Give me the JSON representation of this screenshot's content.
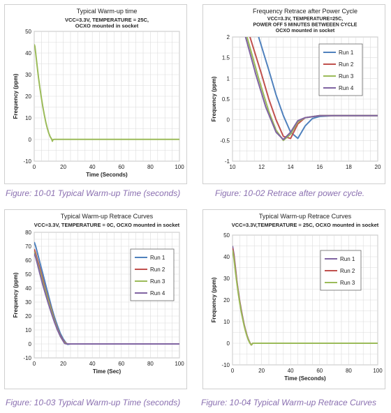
{
  "charts": [
    {
      "panel": "warmup-01",
      "caption": "Figure: 10-01 Typical Warm-up Time (seconds)",
      "chart_data": {
        "type": "line",
        "title": "Typical Warm-up time",
        "subtitle_lines": [
          "VCC=3.3V, TEMPERATURE = 25C,",
          "OCXO mounted in socket"
        ],
        "xlabel": "Time (Seconds)",
        "ylabel": "Frequency (ppm)",
        "xlim": [
          0,
          100
        ],
        "ylim": [
          -10,
          50
        ],
        "xticks": [
          0,
          20,
          40,
          60,
          80,
          100
        ],
        "yticks": [
          -10,
          0,
          10,
          20,
          30,
          40,
          50
        ],
        "grid": true,
        "legend": "none",
        "series": [
          {
            "name": "",
            "color": "#9bbb59",
            "x": [
              0,
              0.5,
              1,
              2,
              3,
              4,
              5,
              6,
              7,
              8,
              9,
              10,
              11,
              12,
              12.5,
              13,
              14,
              15,
              20,
              40,
              60,
              80,
              100
            ],
            "y": [
              44,
              43,
              40,
              34,
              28.5,
              23.5,
              19,
              14.8,
              11.2,
              8,
              5.3,
              3,
              1.3,
              0.2,
              -0.8,
              0,
              0.1,
              0.1,
              0.1,
              0.1,
              0.1,
              0.1,
              0.1
            ]
          }
        ]
      }
    },
    {
      "panel": "retrace-02",
      "caption": "Figure: 10-02 Retrace after power cycle.",
      "chart_data": {
        "type": "line",
        "title": "Frequency Retrace after Power Cycle",
        "subtitle_lines": [
          "VCC=3.3V, TEMPERATURE=25C,",
          "POWER OFF 5 MINUTES BETWEEEN CYCLE",
          "OCXO mounted in socket"
        ],
        "xlabel": "",
        "ylabel": "Frequency (ppm)",
        "xlim": [
          10,
          20
        ],
        "ylim": [
          -1,
          2
        ],
        "xticks": [
          10,
          12,
          14,
          16,
          18,
          20
        ],
        "yticks": [
          -1,
          -0.5,
          0,
          0.5,
          1,
          1.5,
          2
        ],
        "grid": true,
        "legend": "top-right",
        "series": [
          {
            "name": "Run 1",
            "color": "#4f81bd",
            "x": [
              11.8,
              12.5,
              13,
              13.5,
              14,
              14.5,
              15,
              15.5,
              16,
              17,
              20
            ],
            "y": [
              2,
              1.2,
              0.6,
              0.1,
              -0.3,
              -0.45,
              -0.15,
              0.03,
              0.08,
              0.1,
              0.1
            ]
          },
          {
            "name": "Run 2",
            "color": "#c0504d",
            "x": [
              11.2,
              12,
              12.5,
              13,
              13.5,
              14,
              14.5,
              15,
              16,
              20
            ],
            "y": [
              2,
              1.1,
              0.5,
              0,
              -0.4,
              -0.45,
              -0.1,
              0.05,
              0.1,
              0.1
            ]
          },
          {
            "name": "Run 3",
            "color": "#9bbb59",
            "x": [
              11,
              11.8,
              12.5,
              13,
              13.5,
              14,
              14.5,
              15,
              16,
              20
            ],
            "y": [
              2,
              1.0,
              0.2,
              -0.25,
              -0.5,
              -0.35,
              -0.05,
              0.05,
              0.1,
              0.1
            ]
          },
          {
            "name": "Run 4",
            "color": "#8064a2",
            "x": [
              10.9,
              11.6,
              12.3,
              13,
              13.5,
              14,
              14.5,
              15,
              16,
              20
            ],
            "y": [
              2,
              1.1,
              0.3,
              -0.3,
              -0.48,
              -0.3,
              -0.02,
              0.05,
              0.1,
              0.1
            ]
          }
        ]
      }
    },
    {
      "panel": "warmup-03",
      "caption": "Figure: 10-03 Typical Warm-up Time (seconds)",
      "chart_data": {
        "type": "line",
        "title": "Typical Warm-up  Retrace Curves",
        "subtitle_lines": [
          "VCC=3.3V, TEMPERATURE = 0C, OCXO mounted in socket"
        ],
        "xlabel": "Time (Sec)",
        "ylabel": "Frequency (ppm)",
        "xlim": [
          0,
          100
        ],
        "ylim": [
          -10,
          80
        ],
        "xticks": [
          0,
          20,
          40,
          60,
          80,
          100
        ],
        "yticks": [
          -10,
          0,
          10,
          20,
          30,
          40,
          50,
          60,
          70,
          80
        ],
        "grid": true,
        "legend": "right",
        "series": [
          {
            "name": "Run 1",
            "color": "#4f81bd",
            "x": [
              0,
              1,
              2,
              4,
              6,
              8,
              10,
              12,
              14,
              16,
              18,
              20,
              22,
              23,
              25,
              40,
              60,
              80,
              100
            ],
            "y": [
              73,
              70,
              66,
              58,
              50,
              42,
              34,
              26,
              19,
              13,
              7.5,
              3.5,
              0.5,
              -0.3,
              0,
              0,
              0,
              0,
              0
            ]
          },
          {
            "name": "Run 2",
            "color": "#c0504d",
            "x": [
              0,
              1,
              2,
              4,
              6,
              8,
              10,
              12,
              14,
              16,
              18,
              20,
              22,
              24,
              40,
              60,
              80,
              100
            ],
            "y": [
              68,
              65,
              61,
              54,
              46,
              38,
              31,
              24,
              17,
              11,
              6,
              2.5,
              0.2,
              0,
              0,
              0,
              0,
              0
            ]
          },
          {
            "name": "Run 3",
            "color": "#9bbb59",
            "x": [
              0,
              1,
              2,
              4,
              6,
              8,
              10,
              12,
              14,
              16,
              18,
              20,
              22,
              24,
              40,
              60,
              80,
              100
            ],
            "y": [
              66,
              63,
              59,
              52,
              44,
              37,
              30,
              23,
              16.5,
              10.5,
              5.5,
              2,
              0,
              0,
              0,
              0,
              0,
              0
            ]
          },
          {
            "name": "Run 4",
            "color": "#8064a2",
            "x": [
              0,
              1,
              2,
              4,
              6,
              8,
              10,
              12,
              14,
              16,
              18,
              20,
              21,
              23,
              40,
              60,
              80,
              100
            ],
            "y": [
              65,
              62,
              58,
              50,
              42,
              35,
              28,
              21.5,
              15.5,
              10,
              5.5,
              2,
              0.3,
              0,
              0,
              0,
              0,
              0
            ]
          }
        ]
      }
    },
    {
      "panel": "retrace-04",
      "caption": "Figure: 10-04 Typical Warm-up Retrace Curves",
      "chart_data": {
        "type": "line",
        "title": "Typical Warm-up  Retrace Curves",
        "subtitle_lines": [
          "VCC=3.3V,TEMPERATURE = 25C, OCXO mounted in socket"
        ],
        "xlabel": "Time (Seconds)",
        "ylabel": "Frequency (ppm)",
        "xlim": [
          0,
          100
        ],
        "ylim": [
          -10,
          50
        ],
        "xticks": [
          0,
          20,
          40,
          60,
          80,
          100
        ],
        "yticks": [
          -10,
          0,
          10,
          20,
          30,
          40,
          50
        ],
        "grid": true,
        "legend": "right",
        "series": [
          {
            "name": "Run 1",
            "color": "#8064a2",
            "x": [
              0,
              1,
              2,
              3,
              4,
              5,
              6,
              7,
              8,
              9,
              10,
              11,
              12,
              13,
              14,
              20,
              40,
              60,
              80,
              100
            ],
            "y": [
              45,
              41,
              35,
              29,
              24,
              19.5,
              15.5,
              12,
              8.8,
              6,
              3.6,
              1.7,
              0.2,
              -0.8,
              0,
              0,
              0,
              0,
              0,
              0
            ]
          },
          {
            "name": "Run 2",
            "color": "#c0504d",
            "x": [
              0,
              1,
              2,
              3,
              4,
              5,
              6,
              7,
              8,
              9,
              10,
              11,
              12,
              13,
              14,
              20,
              40,
              60,
              80,
              100
            ],
            "y": [
              44,
              40,
              34,
              28.5,
              23.5,
              19,
              15,
              11.5,
              8.5,
              5.8,
              3.4,
              1.5,
              0.1,
              -0.8,
              0,
              0,
              0,
              0,
              0,
              0
            ]
          },
          {
            "name": "Run 3",
            "color": "#9bbb59",
            "x": [
              0,
              1,
              2,
              3,
              4,
              5,
              6,
              7,
              8,
              9,
              10,
              11,
              12,
              13,
              14,
              20,
              40,
              60,
              80,
              100
            ],
            "y": [
              43,
              39,
              33,
              28,
              23,
              18.5,
              14.5,
              11.2,
              8.2,
              5.5,
              3.2,
              1.4,
              0,
              -0.8,
              0,
              0,
              0,
              0,
              0,
              0
            ]
          }
        ]
      }
    }
  ]
}
